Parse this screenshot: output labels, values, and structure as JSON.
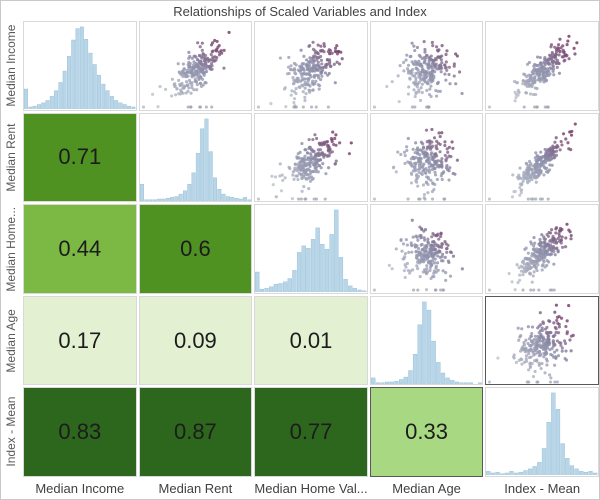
{
  "title": "Relationships of Scaled Variables and Index",
  "chart_data": {
    "type": "scatter-matrix",
    "title": "Relationships of Scaled Variables and Index",
    "variables": [
      "Median Income",
      "Median Rent",
      "Median Home Value",
      "Median Age",
      "Index - Mean"
    ],
    "row_labels_display": [
      "Median Income",
      "Median Rent",
      "Median Home...",
      "Median Age",
      "Index - Mean"
    ],
    "col_labels_display": [
      "Median Income",
      "Median Rent",
      "Median Home Val...",
      "Median Age",
      "Index - Mean"
    ],
    "corr": [
      [
        null,
        null,
        null,
        null,
        null
      ],
      [
        0.71,
        null,
        null,
        null,
        null
      ],
      [
        0.44,
        0.6,
        null,
        null,
        null
      ],
      [
        0.17,
        0.09,
        0.01,
        null,
        null
      ],
      [
        0.83,
        0.87,
        0.77,
        0.33,
        null
      ]
    ],
    "color_scale": [
      {
        "min": 0.75,
        "color": "#2d671d"
      },
      {
        "min": 0.5,
        "color": "#4f9222"
      },
      {
        "min": 0.4,
        "color": "#7cb944"
      },
      {
        "min": 0.25,
        "color": "#a9d883"
      },
      {
        "min": -1,
        "color": "#e4f0d2"
      }
    ],
    "selected_pair": [
      3,
      4
    ],
    "histograms": {
      "Median Income": [
        24,
        2,
        3,
        5,
        7,
        10,
        15,
        22,
        32,
        46,
        64,
        84,
        98,
        100,
        85,
        68,
        54,
        41,
        30,
        22,
        15,
        10,
        7,
        5,
        3,
        2
      ],
      "Median Rent": [
        20,
        1,
        1,
        1,
        2,
        2,
        3,
        4,
        5,
        8,
        12,
        20,
        34,
        58,
        88,
        100,
        60,
        28,
        14,
        8,
        5,
        4,
        3,
        2,
        4,
        1
      ],
      "Median Home Value": [
        24,
        3,
        4,
        6,
        9,
        10,
        12,
        16,
        26,
        48,
        56,
        53,
        64,
        78,
        58,
        52,
        70,
        100,
        42,
        15,
        7,
        4,
        2,
        1
      ],
      "Median Age": [
        7,
        1,
        1,
        2,
        2,
        3,
        5,
        8,
        16,
        36,
        72,
        100,
        90,
        52,
        26,
        13,
        7,
        4,
        2,
        1,
        1,
        1,
        0,
        1
      ],
      "Index - Mean": [
        4,
        2,
        3,
        1,
        2,
        4,
        2,
        3,
        5,
        7,
        10,
        15,
        32,
        64,
        100,
        80,
        38,
        20,
        11,
        7,
        4,
        3,
        4,
        2
      ]
    },
    "histogram_color": "#b9d6e9",
    "histogram_stroke": "#8fbad3",
    "scatter": {
      "points_per_cell": 230,
      "colors": {
        "low": "#b9bfca",
        "mid": "#8b8da8",
        "high": "#6e2a58"
      }
    },
    "style": {
      "grid_border_color": "#d9d9d9",
      "selected_border_color": "#595959",
      "title_color": "#414141",
      "row_label_color": "#595959",
      "col_label_color": "#414141",
      "corr_text_color": "#1c1c1c"
    }
  }
}
